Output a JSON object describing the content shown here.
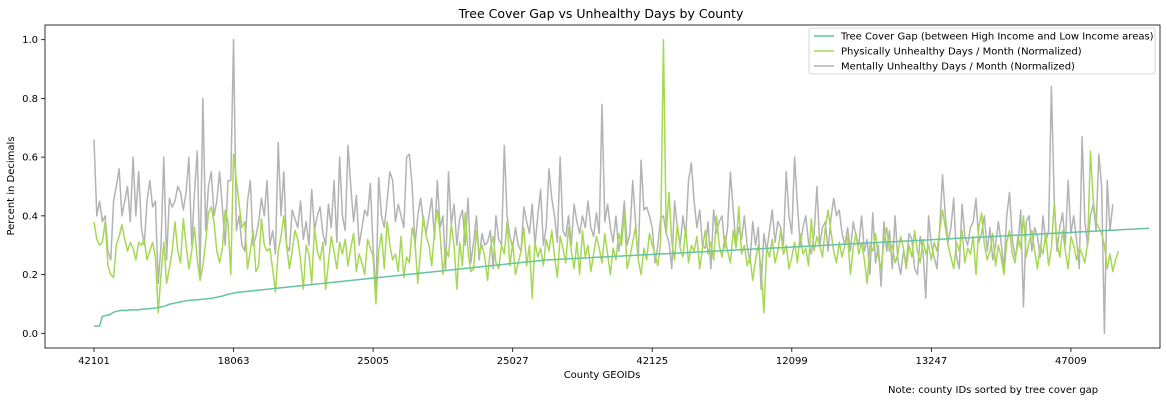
{
  "chart_data": {
    "type": "line",
    "title": "Tree Cover Gap vs Unhealthy Days by County",
    "xlabel": "County GEOIDs",
    "ylabel": "Percent in Decimals",
    "note": "Note: county IDs sorted by tree cover gap",
    "ylim": [
      -0.05,
      1.05
    ],
    "yticks": [
      "0.0",
      "0.2",
      "0.4",
      "0.6",
      "0.8",
      "1.0"
    ],
    "xticks": [
      {
        "index": 0,
        "label": "42101"
      },
      {
        "index": 50,
        "label": "18063"
      },
      {
        "index": 100,
        "label": "25005"
      },
      {
        "index": 150,
        "label": "25027"
      },
      {
        "index": 200,
        "label": "42125"
      },
      {
        "index": 250,
        "label": "12099"
      },
      {
        "index": 300,
        "label": "13247"
      },
      {
        "index": 350,
        "label": "47009"
      }
    ],
    "n_points": 365,
    "legend_position": "top-right",
    "grid": false,
    "series": [
      {
        "name": "Tree Cover Gap (between High Income and Low Income areas)",
        "color": "#66c2a5",
        "values": [
          0.025,
          0.025,
          0.025,
          0.058,
          0.06,
          0.062,
          0.065,
          0.072,
          0.075,
          0.077,
          0.078,
          0.078,
          0.078,
          0.08,
          0.08,
          0.08,
          0.08,
          0.082,
          0.083,
          0.083,
          0.084,
          0.085,
          0.086,
          0.088,
          0.09,
          0.092,
          0.095,
          0.099,
          0.101,
          0.103,
          0.105,
          0.107,
          0.109,
          0.111,
          0.112,
          0.113,
          0.114,
          0.114,
          0.115,
          0.116,
          0.117,
          0.118,
          0.119,
          0.121,
          0.123,
          0.125,
          0.127,
          0.13,
          0.133,
          0.135,
          0.137,
          0.139,
          0.14,
          0.141,
          0.142,
          0.143,
          0.144,
          0.145,
          0.146,
          0.147,
          0.148,
          0.149,
          0.15,
          0.151,
          0.152,
          0.153,
          0.154,
          0.155,
          0.156,
          0.157,
          0.158,
          0.159,
          0.16,
          0.161,
          0.162,
          0.163,
          0.164,
          0.165,
          0.166,
          0.167,
          0.168,
          0.169,
          0.17,
          0.171,
          0.172,
          0.173,
          0.174,
          0.175,
          0.176,
          0.177,
          0.178,
          0.179,
          0.18,
          0.181,
          0.182,
          0.183,
          0.184,
          0.185,
          0.186,
          0.187,
          0.188,
          0.189,
          0.19,
          0.191,
          0.192,
          0.193,
          0.194,
          0.195,
          0.196,
          0.197,
          0.198,
          0.199,
          0.2,
          0.201,
          0.202,
          0.203,
          0.204,
          0.205,
          0.206,
          0.207,
          0.208,
          0.209,
          0.21,
          0.211,
          0.212,
          0.213,
          0.214,
          0.215,
          0.216,
          0.217,
          0.218,
          0.219,
          0.22,
          0.221,
          0.222,
          0.223,
          0.224,
          0.225,
          0.226,
          0.227,
          0.228,
          0.229,
          0.23,
          0.231,
          0.232,
          0.233,
          0.234,
          0.235,
          0.236,
          0.237,
          0.238,
          0.239,
          0.24,
          0.241,
          0.242,
          0.243,
          0.244,
          0.245,
          0.246,
          0.247,
          0.248,
          0.249,
          0.25,
          0.25,
          0.251,
          0.251,
          0.252,
          0.252,
          0.253,
          0.253,
          0.254,
          0.254,
          0.255,
          0.255,
          0.256,
          0.256,
          0.257,
          0.257,
          0.258,
          0.258,
          0.259,
          0.259,
          0.26,
          0.26,
          0.261,
          0.261,
          0.262,
          0.262,
          0.263,
          0.263,
          0.264,
          0.264,
          0.265,
          0.265,
          0.266,
          0.266,
          0.267,
          0.267,
          0.268,
          0.268,
          0.269,
          0.269,
          0.27,
          0.27,
          0.271,
          0.271,
          0.272,
          0.272,
          0.273,
          0.273,
          0.274,
          0.274,
          0.275,
          0.275,
          0.276,
          0.276,
          0.277,
          0.277,
          0.278,
          0.278,
          0.279,
          0.279,
          0.28,
          0.28,
          0.281,
          0.281,
          0.282,
          0.282,
          0.283,
          0.283,
          0.284,
          0.284,
          0.285,
          0.285,
          0.286,
          0.286,
          0.287,
          0.287,
          0.288,
          0.288,
          0.289,
          0.289,
          0.29,
          0.29,
          0.291,
          0.291,
          0.292,
          0.292,
          0.293,
          0.293,
          0.294,
          0.294,
          0.295,
          0.295,
          0.296,
          0.296,
          0.297,
          0.297,
          0.298,
          0.298,
          0.299,
          0.299,
          0.3,
          0.3,
          0.301,
          0.301,
          0.302,
          0.302,
          0.303,
          0.303,
          0.304,
          0.304,
          0.305,
          0.305,
          0.306,
          0.306,
          0.307,
          0.307,
          0.308,
          0.308,
          0.309,
          0.309,
          0.31,
          0.31,
          0.311,
          0.311,
          0.312,
          0.312,
          0.313,
          0.313,
          0.314,
          0.314,
          0.315,
          0.315,
          0.316,
          0.316,
          0.317,
          0.317,
          0.318,
          0.318,
          0.319,
          0.319,
          0.32,
          0.32,
          0.321,
          0.321,
          0.322,
          0.322,
          0.323,
          0.323,
          0.324,
          0.324,
          0.325,
          0.325,
          0.326,
          0.326,
          0.327,
          0.327,
          0.328,
          0.328,
          0.329,
          0.329,
          0.33,
          0.33,
          0.331,
          0.331,
          0.332,
          0.332,
          0.333,
          0.333,
          0.334,
          0.334,
          0.335,
          0.335,
          0.336,
          0.336,
          0.337,
          0.337,
          0.338,
          0.338,
          0.339,
          0.339,
          0.34,
          0.34,
          0.341,
          0.341,
          0.342,
          0.342,
          0.343,
          0.343,
          0.344,
          0.344,
          0.345,
          0.345,
          0.346,
          0.346,
          0.347,
          0.347,
          0.348,
          0.348,
          0.349,
          0.349,
          0.35,
          0.35,
          0.351,
          0.351,
          0.352,
          0.352,
          0.353,
          0.353,
          0.354,
          0.354,
          0.355,
          0.355,
          0.356,
          0.356,
          0.357,
          0.357,
          0.358
        ]
      },
      {
        "name": "Physically Unhealthy Days / Month (Normalized)",
        "color": "#a6d854",
        "values": [
          0.38,
          0.32,
          0.3,
          0.31,
          0.38,
          0.23,
          0.2,
          0.19,
          0.3,
          0.33,
          0.37,
          0.32,
          0.28,
          0.31,
          0.29,
          0.25,
          0.31,
          0.3,
          0.32,
          0.25,
          0.28,
          0.31,
          0.26,
          0.07,
          0.2,
          0.31,
          0.17,
          0.22,
          0.28,
          0.38,
          0.28,
          0.24,
          0.39,
          0.3,
          0.22,
          0.28,
          0.36,
          0.25,
          0.18,
          0.23,
          0.31,
          0.41,
          0.43,
          0.38,
          0.28,
          0.24,
          0.29,
          0.42,
          0.38,
          0.2,
          0.61,
          0.52,
          0.44,
          0.36,
          0.38,
          0.22,
          0.28,
          0.35,
          0.21,
          0.23,
          0.39,
          0.3,
          0.28,
          0.29,
          0.22,
          0.14,
          0.28,
          0.33,
          0.4,
          0.3,
          0.22,
          0.28,
          0.35,
          0.32,
          0.25,
          0.15,
          0.3,
          0.27,
          0.17,
          0.36,
          0.28,
          0.25,
          0.31,
          0.15,
          0.24,
          0.33,
          0.28,
          0.22,
          0.31,
          0.27,
          0.32,
          0.23,
          0.29,
          0.34,
          0.21,
          0.27,
          0.24,
          0.2,
          0.32,
          0.29,
          0.26,
          0.1,
          0.28,
          0.34,
          0.22,
          0.38,
          0.3,
          0.25,
          0.27,
          0.21,
          0.33,
          0.19,
          0.26,
          0.24,
          0.36,
          0.31,
          0.17,
          0.28,
          0.4,
          0.33,
          0.3,
          0.23,
          0.35,
          0.42,
          0.34,
          0.2,
          0.29,
          0.26,
          0.37,
          0.3,
          0.15,
          0.31,
          0.23,
          0.41,
          0.28,
          0.21,
          0.22,
          0.35,
          0.27,
          0.3,
          0.26,
          0.18,
          0.29,
          0.33,
          0.24,
          0.22,
          0.3,
          0.27,
          0.38,
          0.23,
          0.31,
          0.2,
          0.24,
          0.28,
          0.36,
          0.23,
          0.3,
          0.12,
          0.31,
          0.26,
          0.29,
          0.23,
          0.32,
          0.28,
          0.35,
          0.26,
          0.19,
          0.33,
          0.29,
          0.24,
          0.36,
          0.28,
          0.22,
          0.31,
          0.2,
          0.35,
          0.26,
          0.3,
          0.21,
          0.27,
          0.33,
          0.29,
          0.24,
          0.34,
          0.27,
          0.2,
          0.29,
          0.25,
          0.34,
          0.3,
          0.41,
          0.22,
          0.26,
          0.31,
          0.36,
          0.25,
          0.2,
          0.29,
          0.25,
          0.34,
          0.3,
          0.27,
          0.23,
          0.31,
          1.0,
          0.34,
          0.48,
          0.31,
          0.25,
          0.37,
          0.29,
          0.26,
          0.36,
          0.24,
          0.3,
          0.28,
          0.33,
          0.22,
          0.29,
          0.35,
          0.27,
          0.31,
          0.25,
          0.4,
          0.3,
          0.26,
          0.33,
          0.28,
          0.24,
          0.35,
          0.29,
          0.43,
          0.27,
          0.3,
          0.23,
          0.26,
          0.18,
          0.25,
          0.3,
          0.22,
          0.07,
          0.29,
          0.26,
          0.32,
          0.24,
          0.28,
          0.35,
          0.27,
          0.3,
          0.22,
          0.26,
          0.31,
          0.24,
          0.34,
          0.27,
          0.29,
          0.23,
          0.39,
          0.28,
          0.33,
          0.3,
          0.26,
          0.36,
          0.42,
          0.35,
          0.28,
          0.24,
          0.31,
          0.26,
          0.3,
          0.33,
          0.2,
          0.29,
          0.34,
          0.27,
          0.31,
          0.25,
          0.17,
          0.3,
          0.28,
          0.34,
          0.26,
          0.22,
          0.31,
          0.36,
          0.28,
          0.3,
          0.24,
          0.27,
          0.33,
          0.29,
          0.22,
          0.3,
          0.26,
          0.35,
          0.28,
          0.24,
          0.32,
          0.27,
          0.3,
          0.25,
          0.31,
          0.28,
          0.35,
          0.42,
          0.36,
          0.3,
          0.26,
          0.22,
          0.31,
          0.28,
          0.35,
          0.24,
          0.29,
          0.27,
          0.33,
          0.2,
          0.36,
          0.41,
          0.3,
          0.25,
          0.28,
          0.34,
          0.23,
          0.3,
          0.26,
          0.2,
          0.31,
          0.35,
          0.27,
          0.24,
          0.33,
          0.29,
          0.4,
          0.26,
          0.31,
          0.35,
          0.28,
          0.22,
          0.3,
          0.27,
          0.34,
          0.23,
          0.29,
          0.44,
          0.31,
          0.26,
          0.35,
          0.28,
          0.22,
          0.33,
          0.3,
          0.25,
          0.29,
          0.27,
          0.24,
          0.31,
          0.62,
          0.45,
          0.38,
          0.36,
          0.34,
          0.3,
          0.22,
          0.27,
          0.21,
          0.25,
          0.28
        ]
      },
      {
        "name": "Mentally Unhealthy Days / Month (Normalized)",
        "color": "#b3b3b3",
        "values": [
          0.66,
          0.4,
          0.45,
          0.38,
          0.4,
          0.28,
          0.25,
          0.45,
          0.5,
          0.56,
          0.4,
          0.45,
          0.5,
          0.38,
          0.6,
          0.4,
          0.55,
          0.36,
          0.3,
          0.45,
          0.52,
          0.43,
          0.45,
          0.17,
          0.3,
          0.6,
          0.25,
          0.46,
          0.43,
          0.45,
          0.5,
          0.48,
          0.42,
          0.48,
          0.6,
          0.3,
          0.48,
          0.62,
          0.2,
          0.8,
          0.35,
          0.5,
          0.55,
          0.4,
          0.45,
          0.55,
          0.43,
          0.3,
          0.52,
          0.52,
          1.0,
          0.35,
          0.4,
          0.3,
          0.28,
          0.45,
          0.52,
          0.3,
          0.33,
          0.38,
          0.46,
          0.4,
          0.52,
          0.3,
          0.35,
          0.27,
          0.65,
          0.4,
          0.55,
          0.3,
          0.28,
          0.42,
          0.39,
          0.36,
          0.45,
          0.32,
          0.38,
          0.3,
          0.49,
          0.35,
          0.4,
          0.43,
          0.34,
          0.3,
          0.44,
          0.36,
          0.52,
          0.31,
          0.6,
          0.4,
          0.35,
          0.64,
          0.5,
          0.38,
          0.47,
          0.3,
          0.36,
          0.42,
          0.4,
          0.51,
          0.29,
          0.13,
          0.53,
          0.4,
          0.36,
          0.45,
          0.55,
          0.52,
          0.38,
          0.44,
          0.4,
          0.36,
          0.6,
          0.61,
          0.5,
          0.3,
          0.4,
          0.46,
          0.38,
          0.34,
          0.4,
          0.46,
          0.32,
          0.52,
          0.36,
          0.4,
          0.22,
          0.55,
          0.37,
          0.44,
          0.3,
          0.39,
          0.42,
          0.3,
          0.46,
          0.24,
          0.31,
          0.4,
          0.25,
          0.34,
          0.3,
          0.31,
          0.35,
          0.22,
          0.4,
          0.32,
          0.3,
          0.64,
          0.4,
          0.33,
          0.29,
          0.36,
          0.3,
          0.28,
          0.43,
          0.38,
          0.34,
          0.44,
          0.3,
          0.4,
          0.49,
          0.3,
          0.36,
          0.56,
          0.46,
          0.4,
          0.31,
          0.6,
          0.35,
          0.33,
          0.4,
          0.3,
          0.44,
          0.38,
          0.34,
          0.4,
          0.36,
          0.45,
          0.36,
          0.33,
          0.41,
          0.34,
          0.78,
          0.38,
          0.44,
          0.36,
          0.31,
          0.4,
          0.28,
          0.34,
          0.45,
          0.3,
          0.34,
          0.52,
          0.38,
          0.25,
          0.59,
          0.42,
          0.43,
          0.4,
          0.36,
          0.24,
          0.3,
          0.39,
          0.4,
          0.34,
          0.31,
          0.22,
          0.45,
          0.36,
          0.3,
          0.4,
          0.33,
          0.52,
          0.58,
          0.45,
          0.36,
          0.42,
          0.3,
          0.29,
          0.38,
          0.22,
          0.42,
          0.34,
          0.38,
          0.4,
          0.29,
          0.36,
          0.55,
          0.42,
          0.3,
          0.36,
          0.32,
          0.4,
          0.3,
          0.24,
          0.38,
          0.3,
          0.36,
          0.15,
          0.34,
          0.28,
          0.35,
          0.42,
          0.31,
          0.38,
          0.36,
          0.3,
          0.55,
          0.4,
          0.34,
          0.6,
          0.44,
          0.3,
          0.36,
          0.4,
          0.31,
          0.27,
          0.34,
          0.5,
          0.3,
          0.36,
          0.38,
          0.28,
          0.39,
          0.46,
          0.4,
          0.42,
          0.34,
          0.3,
          0.36,
          0.28,
          0.38,
          0.33,
          0.3,
          0.4,
          0.28,
          0.32,
          0.2,
          0.41,
          0.24,
          0.3,
          0.16,
          0.38,
          0.28,
          0.35,
          0.22,
          0.4,
          0.25,
          0.2,
          0.28,
          0.24,
          0.34,
          0.32,
          0.22,
          0.2,
          0.33,
          0.28,
          0.12,
          0.4,
          0.3,
          0.26,
          0.22,
          0.36,
          0.54,
          0.4,
          0.31,
          0.36,
          0.46,
          0.26,
          0.22,
          0.44,
          0.33,
          0.3,
          0.36,
          0.38,
          0.46,
          0.31,
          0.34,
          0.4,
          0.28,
          0.36,
          0.25,
          0.3,
          0.38,
          0.31,
          0.22,
          0.4,
          0.48,
          0.32,
          0.26,
          0.3,
          0.42,
          0.09,
          0.38,
          0.4,
          0.28,
          0.36,
          0.33,
          0.26,
          0.4,
          0.31,
          0.35,
          0.84,
          0.46,
          0.28,
          0.36,
          0.41,
          0.3,
          0.52,
          0.34,
          0.4,
          0.32,
          0.22,
          0.67,
          0.38,
          0.3,
          0.4,
          0.44,
          0.35,
          0.61,
          0.5,
          0.0,
          0.52,
          0.35,
          0.44
        ]
      }
    ]
  }
}
